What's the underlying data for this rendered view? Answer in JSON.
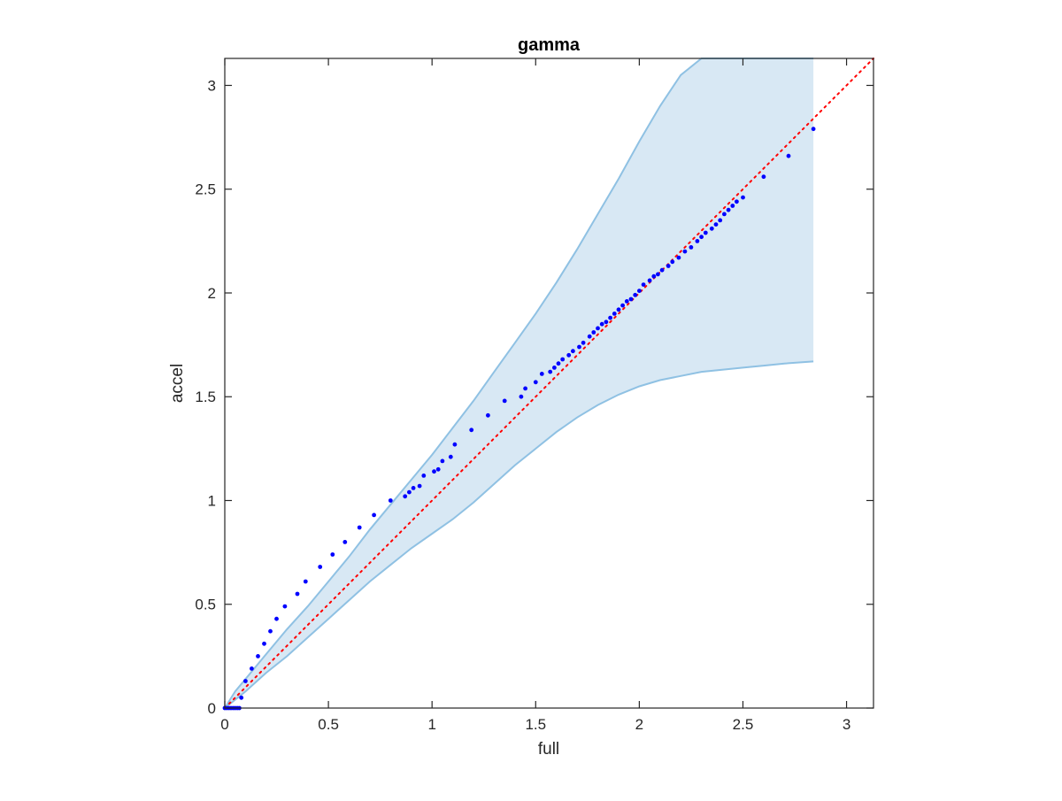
{
  "chart_data": {
    "type": "scatter",
    "title": "gamma",
    "xlabel": "full",
    "ylabel": "accel",
    "xlim": [
      0,
      3.13
    ],
    "ylim": [
      0,
      3.13
    ],
    "xticks": [
      0,
      0.5,
      1,
      1.5,
      2,
      2.5,
      3
    ],
    "yticks": [
      0,
      0.5,
      1,
      1.5,
      2,
      2.5,
      3
    ],
    "xtick_labels": [
      "0",
      "0.5",
      "1",
      "1.5",
      "2",
      "2.5",
      "3"
    ],
    "ytick_labels": [
      "0",
      "0.5",
      "1",
      "1.5",
      "2",
      "2.5",
      "3"
    ],
    "grid": false,
    "colors": {
      "points": "#0000ff",
      "band_fill": "#d8e8f4",
      "band_edge": "#8fc1e3",
      "reference_line": "#ff0000",
      "axes": "#262626"
    },
    "band": {
      "x": [
        0.0,
        0.05,
        0.1,
        0.2,
        0.3,
        0.4,
        0.5,
        0.6,
        0.7,
        0.8,
        0.9,
        1.0,
        1.1,
        1.2,
        1.3,
        1.4,
        1.5,
        1.6,
        1.7,
        1.8,
        1.9,
        2.0,
        2.1,
        2.2,
        2.3,
        2.4,
        2.5,
        2.6,
        2.7,
        2.84
      ],
      "upper": [
        0.0,
        0.08,
        0.14,
        0.26,
        0.38,
        0.49,
        0.61,
        0.73,
        0.86,
        0.98,
        1.1,
        1.22,
        1.35,
        1.48,
        1.62,
        1.76,
        1.9,
        2.05,
        2.21,
        2.38,
        2.55,
        2.73,
        2.9,
        3.05,
        3.13,
        3.13,
        3.13,
        3.13,
        3.13,
        3.13
      ],
      "lower": [
        0.0,
        0.04,
        0.08,
        0.17,
        0.25,
        0.34,
        0.43,
        0.52,
        0.61,
        0.69,
        0.77,
        0.84,
        0.91,
        0.99,
        1.08,
        1.17,
        1.25,
        1.33,
        1.4,
        1.46,
        1.51,
        1.55,
        1.58,
        1.6,
        1.62,
        1.63,
        1.64,
        1.65,
        1.66,
        1.67
      ]
    },
    "reference_line": {
      "x": [
        0,
        3.13
      ],
      "y": [
        0,
        3.13
      ]
    },
    "series": [
      {
        "x": [
          0.0,
          0.01,
          0.02,
          0.03,
          0.04,
          0.05,
          0.06,
          0.07,
          0.08,
          0.1,
          0.13,
          0.16,
          0.19,
          0.22,
          0.25,
          0.29,
          0.35,
          0.39,
          0.46,
          0.52,
          0.58,
          0.65,
          0.72,
          0.8,
          0.87,
          0.89,
          0.91,
          0.94,
          0.96,
          1.01,
          1.03,
          1.05,
          1.09,
          1.11,
          1.19,
          1.27,
          1.35,
          1.43,
          1.45,
          1.5,
          1.53,
          1.57,
          1.59,
          1.61,
          1.63,
          1.66,
          1.68,
          1.71,
          1.73,
          1.76,
          1.78,
          1.8,
          1.82,
          1.84,
          1.86,
          1.88,
          1.9,
          1.92,
          1.94,
          1.96,
          1.98,
          2.0,
          2.02,
          2.05,
          2.07,
          2.09,
          2.11,
          2.14,
          2.16,
          2.19,
          2.22,
          2.25,
          2.28,
          2.3,
          2.32,
          2.35,
          2.37,
          2.39,
          2.41,
          2.43,
          2.45,
          2.47,
          2.5,
          2.6,
          2.72,
          2.84
        ],
        "y": [
          0.0,
          0.0,
          0.0,
          0.0,
          0.0,
          0.0,
          0.0,
          0.0,
          0.05,
          0.13,
          0.19,
          0.25,
          0.31,
          0.37,
          0.43,
          0.49,
          0.55,
          0.61,
          0.68,
          0.74,
          0.8,
          0.87,
          0.93,
          1.0,
          1.02,
          1.04,
          1.06,
          1.07,
          1.12,
          1.14,
          1.15,
          1.19,
          1.21,
          1.27,
          1.34,
          1.41,
          1.48,
          1.5,
          1.54,
          1.57,
          1.61,
          1.62,
          1.64,
          1.66,
          1.68,
          1.7,
          1.72,
          1.74,
          1.76,
          1.79,
          1.81,
          1.83,
          1.85,
          1.86,
          1.88,
          1.9,
          1.92,
          1.94,
          1.96,
          1.97,
          1.99,
          2.01,
          2.04,
          2.06,
          2.08,
          2.09,
          2.11,
          2.13,
          2.15,
          2.17,
          2.2,
          2.22,
          2.25,
          2.27,
          2.29,
          2.31,
          2.33,
          2.35,
          2.38,
          2.4,
          2.42,
          2.44,
          2.46,
          2.56,
          2.66,
          2.79
        ]
      }
    ]
  }
}
